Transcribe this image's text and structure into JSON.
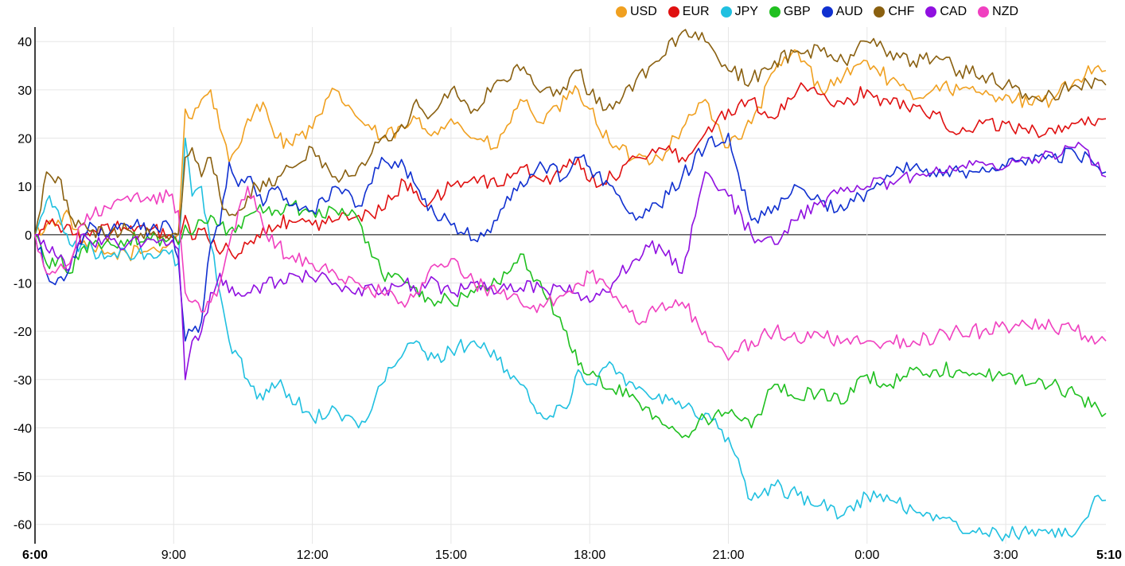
{
  "chart_data": {
    "type": "line",
    "title": "",
    "xlabel": "",
    "ylabel": "",
    "x_ticks": [
      "6:00",
      "9:00",
      "12:00",
      "15:00",
      "18:00",
      "21:00",
      "0:00",
      "3:00",
      "5:10"
    ],
    "x_tick_hours": [
      0,
      3,
      6,
      9,
      12,
      15,
      18,
      21,
      23.167
    ],
    "x_range_hours": [
      0,
      23.167
    ],
    "ylim": [
      -64,
      43
    ],
    "y_ticks": [
      40,
      30,
      20,
      10,
      0,
      -10,
      -20,
      -30,
      -40,
      -50,
      -60
    ],
    "grid": true,
    "legend_position": "top-right",
    "x_hours": [
      0,
      0.25,
      0.5,
      0.75,
      1,
      1.25,
      1.5,
      2,
      2.5,
      2.9,
      3.1,
      3.25,
      3.4,
      3.6,
      3.8,
      4,
      4.2,
      4.4,
      4.6,
      4.8,
      5,
      5.25,
      5.5,
      6,
      6.5,
      7,
      7.5,
      8,
      8.25,
      8.5,
      9,
      9.5,
      10,
      10.5,
      11,
      11.5,
      11.75,
      12,
      12.5,
      13,
      13.5,
      14,
      14.5,
      15,
      15.5,
      16,
      16.5,
      17,
      17.5,
      18,
      18.5,
      19,
      19.5,
      20,
      20.5,
      21,
      21.5,
      22,
      22.5,
      23,
      23.167
    ],
    "series": [
      {
        "name": "USD",
        "color": "#f0a020",
        "values": [
          0,
          2,
          3,
          4,
          -2,
          -3,
          -4,
          -4,
          -3,
          -2,
          0,
          26,
          24,
          28,
          30,
          22,
          15,
          18,
          24,
          27,
          26,
          20,
          19,
          22,
          30,
          24,
          20,
          22,
          24,
          21,
          24,
          20,
          18,
          28,
          23,
          28,
          30,
          26,
          18,
          16,
          16,
          22,
          28,
          18,
          23,
          34,
          38,
          30,
          33,
          36,
          32,
          28,
          31,
          30,
          29,
          29,
          27,
          28,
          32,
          35,
          34
        ]
      },
      {
        "name": "EUR",
        "color": "#e01010",
        "values": [
          0,
          3,
          2,
          2,
          -2,
          1,
          2,
          1,
          1,
          0,
          -2,
          4,
          -1,
          1,
          -2,
          -4,
          -3,
          -4,
          -2,
          0,
          0,
          2,
          3,
          2,
          3,
          4,
          5,
          11,
          9,
          6,
          10,
          12,
          10,
          14,
          11,
          14,
          16,
          11,
          12,
          16,
          18,
          16,
          21,
          26,
          28,
          24,
          30,
          29,
          27,
          30,
          27,
          27,
          25,
          21,
          23,
          23,
          21,
          22,
          23,
          24,
          24
        ]
      },
      {
        "name": "JPY",
        "color": "#20c0e0",
        "values": [
          0,
          7,
          5,
          -2,
          -2,
          -3,
          -5,
          -4,
          -4,
          -4,
          -6,
          20,
          8,
          10,
          -2,
          -12,
          -22,
          -25,
          -30,
          -34,
          -32,
          -31,
          -33,
          -38,
          -36,
          -40,
          -31,
          -24,
          -22,
          -26,
          -24,
          -22,
          -26,
          -31,
          -38,
          -36,
          -28,
          -31,
          -27,
          -32,
          -33,
          -36,
          -37,
          -42,
          -55,
          -52,
          -54,
          -56,
          -58,
          -54,
          -55,
          -57,
          -58,
          -61,
          -62,
          -62,
          -62,
          -61,
          -62,
          -54,
          -55
        ]
      },
      {
        "name": "GBP",
        "color": "#20c020",
        "values": [
          0,
          -6,
          -5,
          -8,
          -3,
          -2,
          -2,
          -1,
          -1,
          -1,
          -2,
          2,
          0,
          3,
          4,
          2,
          1,
          2,
          4,
          5,
          5,
          5,
          6,
          5,
          5,
          3,
          -8,
          -10,
          -11,
          -13,
          -14,
          -12,
          -10,
          -4,
          -12,
          -20,
          -27,
          -29,
          -32,
          -34,
          -38,
          -42,
          -38,
          -37,
          -40,
          -31,
          -34,
          -32,
          -35,
          -29,
          -31,
          -28,
          -28,
          -28,
          -29,
          -29,
          -31,
          -31,
          -33,
          -36,
          -37
        ]
      },
      {
        "name": "AUD",
        "color": "#1030d0",
        "values": [
          0,
          -8,
          -9,
          -7,
          -2,
          2,
          0,
          2,
          1,
          2,
          -5,
          -22,
          -20,
          -18,
          -2,
          2,
          15,
          10,
          12,
          8,
          7,
          10,
          6,
          5,
          10,
          6,
          16,
          14,
          10,
          5,
          2,
          -1,
          3,
          11,
          14,
          12,
          16,
          14,
          10,
          3,
          6,
          12,
          18,
          21,
          3,
          6,
          10,
          7,
          5,
          9,
          12,
          14,
          12,
          13,
          14,
          14,
          16,
          16,
          17,
          14,
          13
        ]
      },
      {
        "name": "CHF",
        "color": "#8a6010",
        "values": [
          0,
          13,
          12,
          4,
          2,
          1,
          0,
          1,
          0,
          -1,
          0,
          16,
          18,
          12,
          16,
          8,
          4,
          5,
          8,
          10,
          10,
          12,
          14,
          18,
          12,
          14,
          20,
          22,
          28,
          24,
          30,
          26,
          32,
          34,
          30,
          30,
          34,
          29,
          26,
          32,
          36,
          42,
          40,
          34,
          32,
          36,
          38,
          38,
          36,
          40,
          38,
          36,
          37,
          34,
          33,
          31,
          28,
          29,
          31,
          32,
          31
        ]
      },
      {
        "name": "CAD",
        "color": "#9010e0",
        "values": [
          0,
          -3,
          -5,
          -7,
          0,
          -2,
          -1,
          -2,
          -1,
          -2,
          -3,
          -30,
          -22,
          -20,
          -12,
          -8,
          -12,
          -12,
          -12,
          -11,
          -10,
          -10,
          -8,
          -9,
          -10,
          -11,
          -12,
          -10,
          -12,
          -10,
          -12,
          -10,
          -12,
          -11,
          -11,
          -12,
          -12,
          -14,
          -10,
          -5,
          -2,
          -8,
          13,
          8,
          0,
          -2,
          3,
          7,
          9,
          10,
          11,
          12,
          14,
          14,
          15,
          14,
          16,
          17,
          18,
          15,
          12
        ]
      },
      {
        "name": "NZD",
        "color": "#f040c0",
        "values": [
          0,
          -8,
          -7,
          -6,
          2,
          4,
          6,
          8,
          7,
          8,
          5,
          -12,
          -14,
          -16,
          -14,
          -10,
          -2,
          5,
          10,
          5,
          0,
          -2,
          -5,
          -6,
          -8,
          -10,
          -12,
          -15,
          -12,
          -8,
          -5,
          -10,
          -12,
          -14,
          -15,
          -12,
          -10,
          -8,
          -13,
          -18,
          -15,
          -14,
          -20,
          -26,
          -22,
          -20,
          -22,
          -21,
          -22,
          -22,
          -22,
          -22,
          -21,
          -20,
          -20,
          -19,
          -19,
          -19,
          -20,
          -22,
          -22
        ]
      }
    ]
  }
}
